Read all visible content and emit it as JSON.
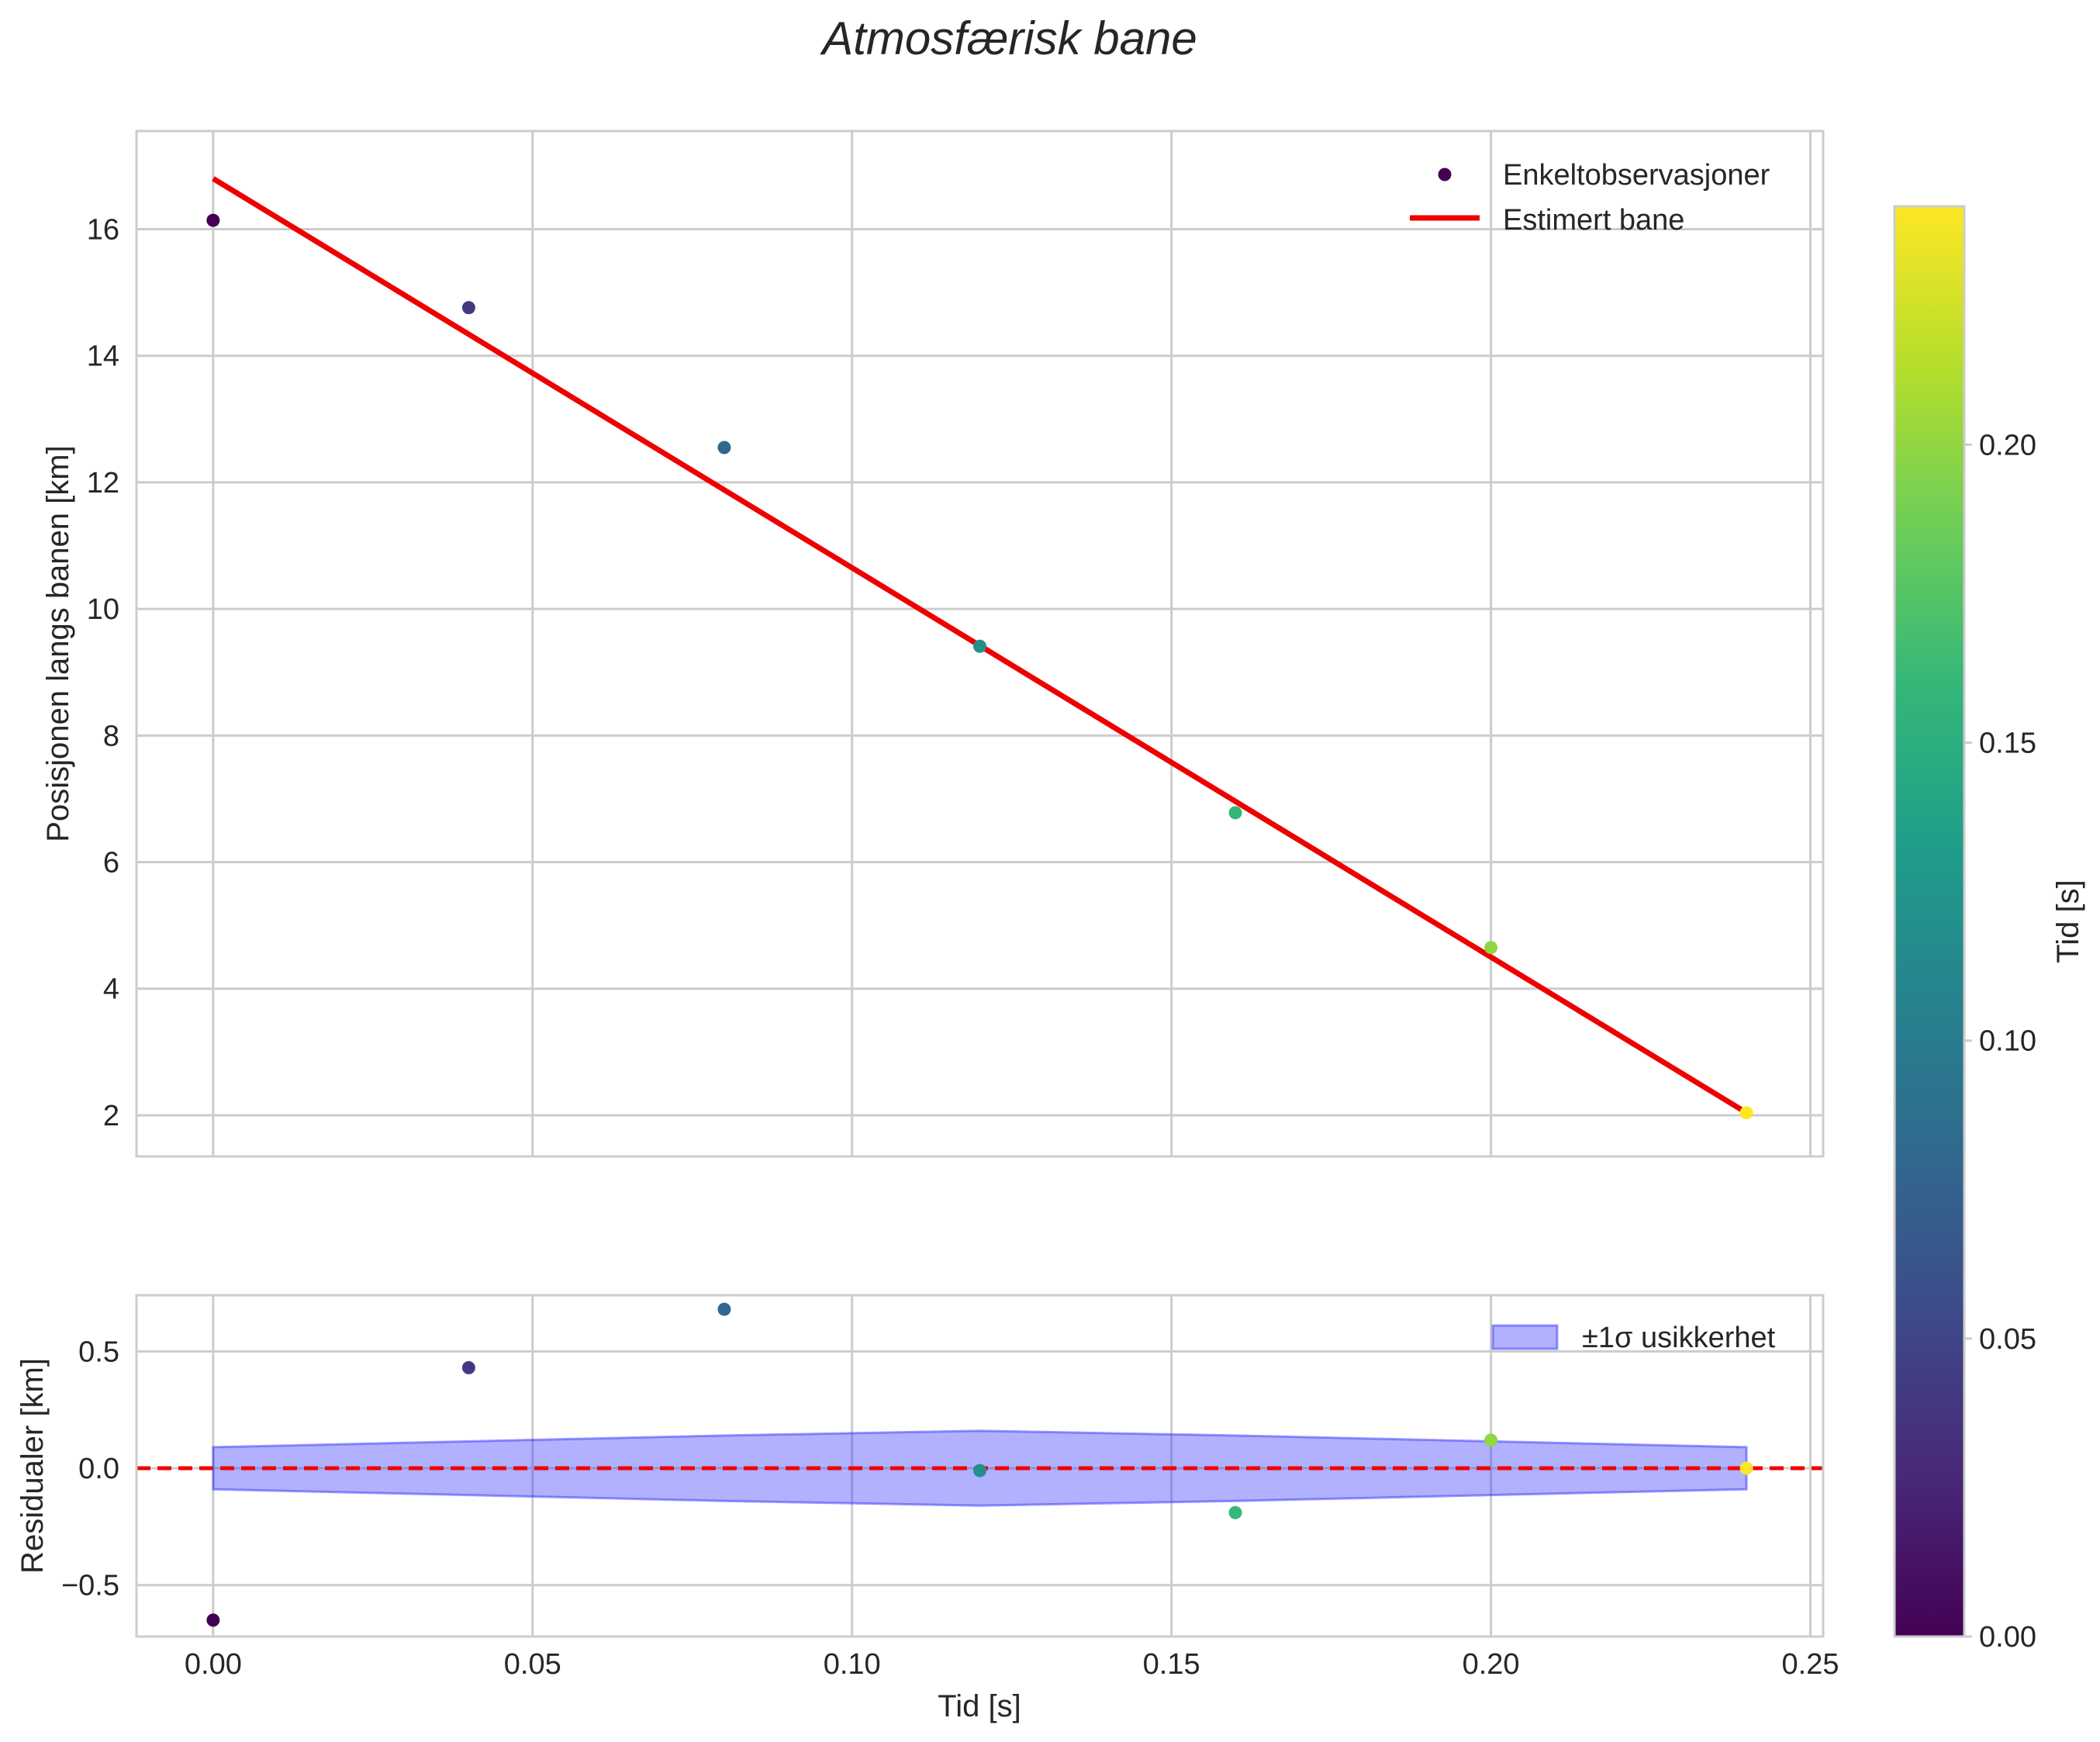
{
  "title": "Atmosfærisk bane",
  "chart_data": [
    {
      "name": "trajectory",
      "type": "scatter",
      "xlabel": "",
      "ylabel": "Posisjonen langs banen [km]",
      "xlim": [
        -0.012,
        0.252
      ],
      "ylim": [
        1.35,
        17.55
      ],
      "xticks": [
        0.0,
        0.05,
        0.1,
        0.15,
        0.2,
        0.25
      ],
      "yticks": [
        2,
        4,
        6,
        8,
        10,
        12,
        14,
        16
      ],
      "ytick_labels": [
        "2",
        "4",
        "6",
        "8",
        "10",
        "12",
        "14",
        "16"
      ],
      "grid": true,
      "legend_position": "top-right",
      "series": [
        {
          "name": "Enkeltobservasjoner",
          "kind": "scatter",
          "color_by": "Tid [s]",
          "x": [
            0.0,
            0.04,
            0.08,
            0.12,
            0.16,
            0.2,
            0.24
          ],
          "y": [
            16.14,
            14.76,
            12.55,
            9.41,
            6.78,
            4.65,
            2.04
          ]
        },
        {
          "name": "Estimert bane",
          "kind": "line",
          "color": "#ee0000",
          "x": [
            0.0,
            0.24
          ],
          "y": [
            16.8,
            2.04
          ]
        }
      ]
    },
    {
      "name": "residuals",
      "type": "scatter",
      "xlabel": "Tid [s]",
      "ylabel": "Residualer [km]",
      "xlim": [
        -0.012,
        0.252
      ],
      "ylim": [
        -0.72,
        0.74
      ],
      "xticks": [
        0.0,
        0.05,
        0.1,
        0.15,
        0.2,
        0.25
      ],
      "xtick_labels": [
        "0.00",
        "0.05",
        "0.10",
        "0.15",
        "0.20",
        "0.25"
      ],
      "yticks": [
        -0.5,
        0.0,
        0.5
      ],
      "ytick_labels": [
        "−0.5",
        "0.0",
        "0.5"
      ],
      "grid": true,
      "legend_position": "top-right",
      "series": [
        {
          "name": "Residualer",
          "kind": "scatter",
          "color_by": "Tid [s]",
          "x": [
            0.0,
            0.04,
            0.08,
            0.12,
            0.16,
            0.2,
            0.24
          ],
          "y": [
            -0.65,
            0.43,
            0.68,
            -0.01,
            -0.19,
            0.12,
            0.0
          ]
        },
        {
          "name": "±1σ usikkerhet",
          "kind": "band",
          "color": "#3333ff",
          "x": [
            0.0,
            0.04,
            0.08,
            0.12,
            0.16,
            0.2,
            0.24
          ],
          "lower": [
            -0.09,
            -0.115,
            -0.14,
            -0.16,
            -0.14,
            -0.115,
            -0.09
          ],
          "upper": [
            0.09,
            0.115,
            0.14,
            0.16,
            0.14,
            0.115,
            0.09
          ]
        },
        {
          "name": "zero-line",
          "kind": "hline",
          "color": "#ee0000",
          "y": 0.0
        }
      ]
    }
  ],
  "colorbar": {
    "label": "Tid [s]",
    "colormap": "viridis",
    "range": [
      0.0,
      0.24
    ],
    "ticks": [
      0.0,
      0.05,
      0.1,
      0.15,
      0.2
    ],
    "tick_labels": [
      "0.00",
      "0.05",
      "0.10",
      "0.15",
      "0.20"
    ],
    "colors": [
      "#440154",
      "#482878",
      "#3e4989",
      "#31688e",
      "#26828e",
      "#1f9e89",
      "#35b779",
      "#6ece58",
      "#b5de2b",
      "#fde725"
    ]
  }
}
